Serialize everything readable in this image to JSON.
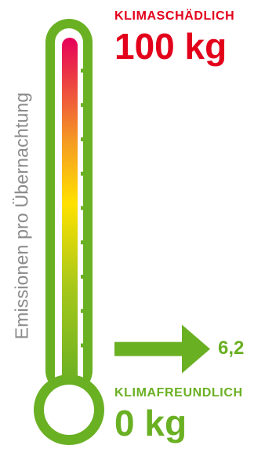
{
  "axis_label": "Emissionen pro Übernachtung",
  "top": {
    "caption": "KLIMASCHÄDLICH",
    "value": "100 kg"
  },
  "bottom": {
    "caption": "KLIMAFREUNDLICH",
    "value": "0 kg"
  },
  "marker": {
    "value": "6,2"
  },
  "chart_data": {
    "type": "gauge",
    "min": 0,
    "max": 100,
    "unit": "kg",
    "value": 6.2,
    "tick_count": 9
  },
  "colors": {
    "frame": "#6ab023",
    "hot": "#e6005a",
    "warm": "#f59a23",
    "mid": "#ffe100",
    "cool": "#6ab023",
    "caption_hot": "#e3001b",
    "label_gray": "#8a8a8a"
  }
}
